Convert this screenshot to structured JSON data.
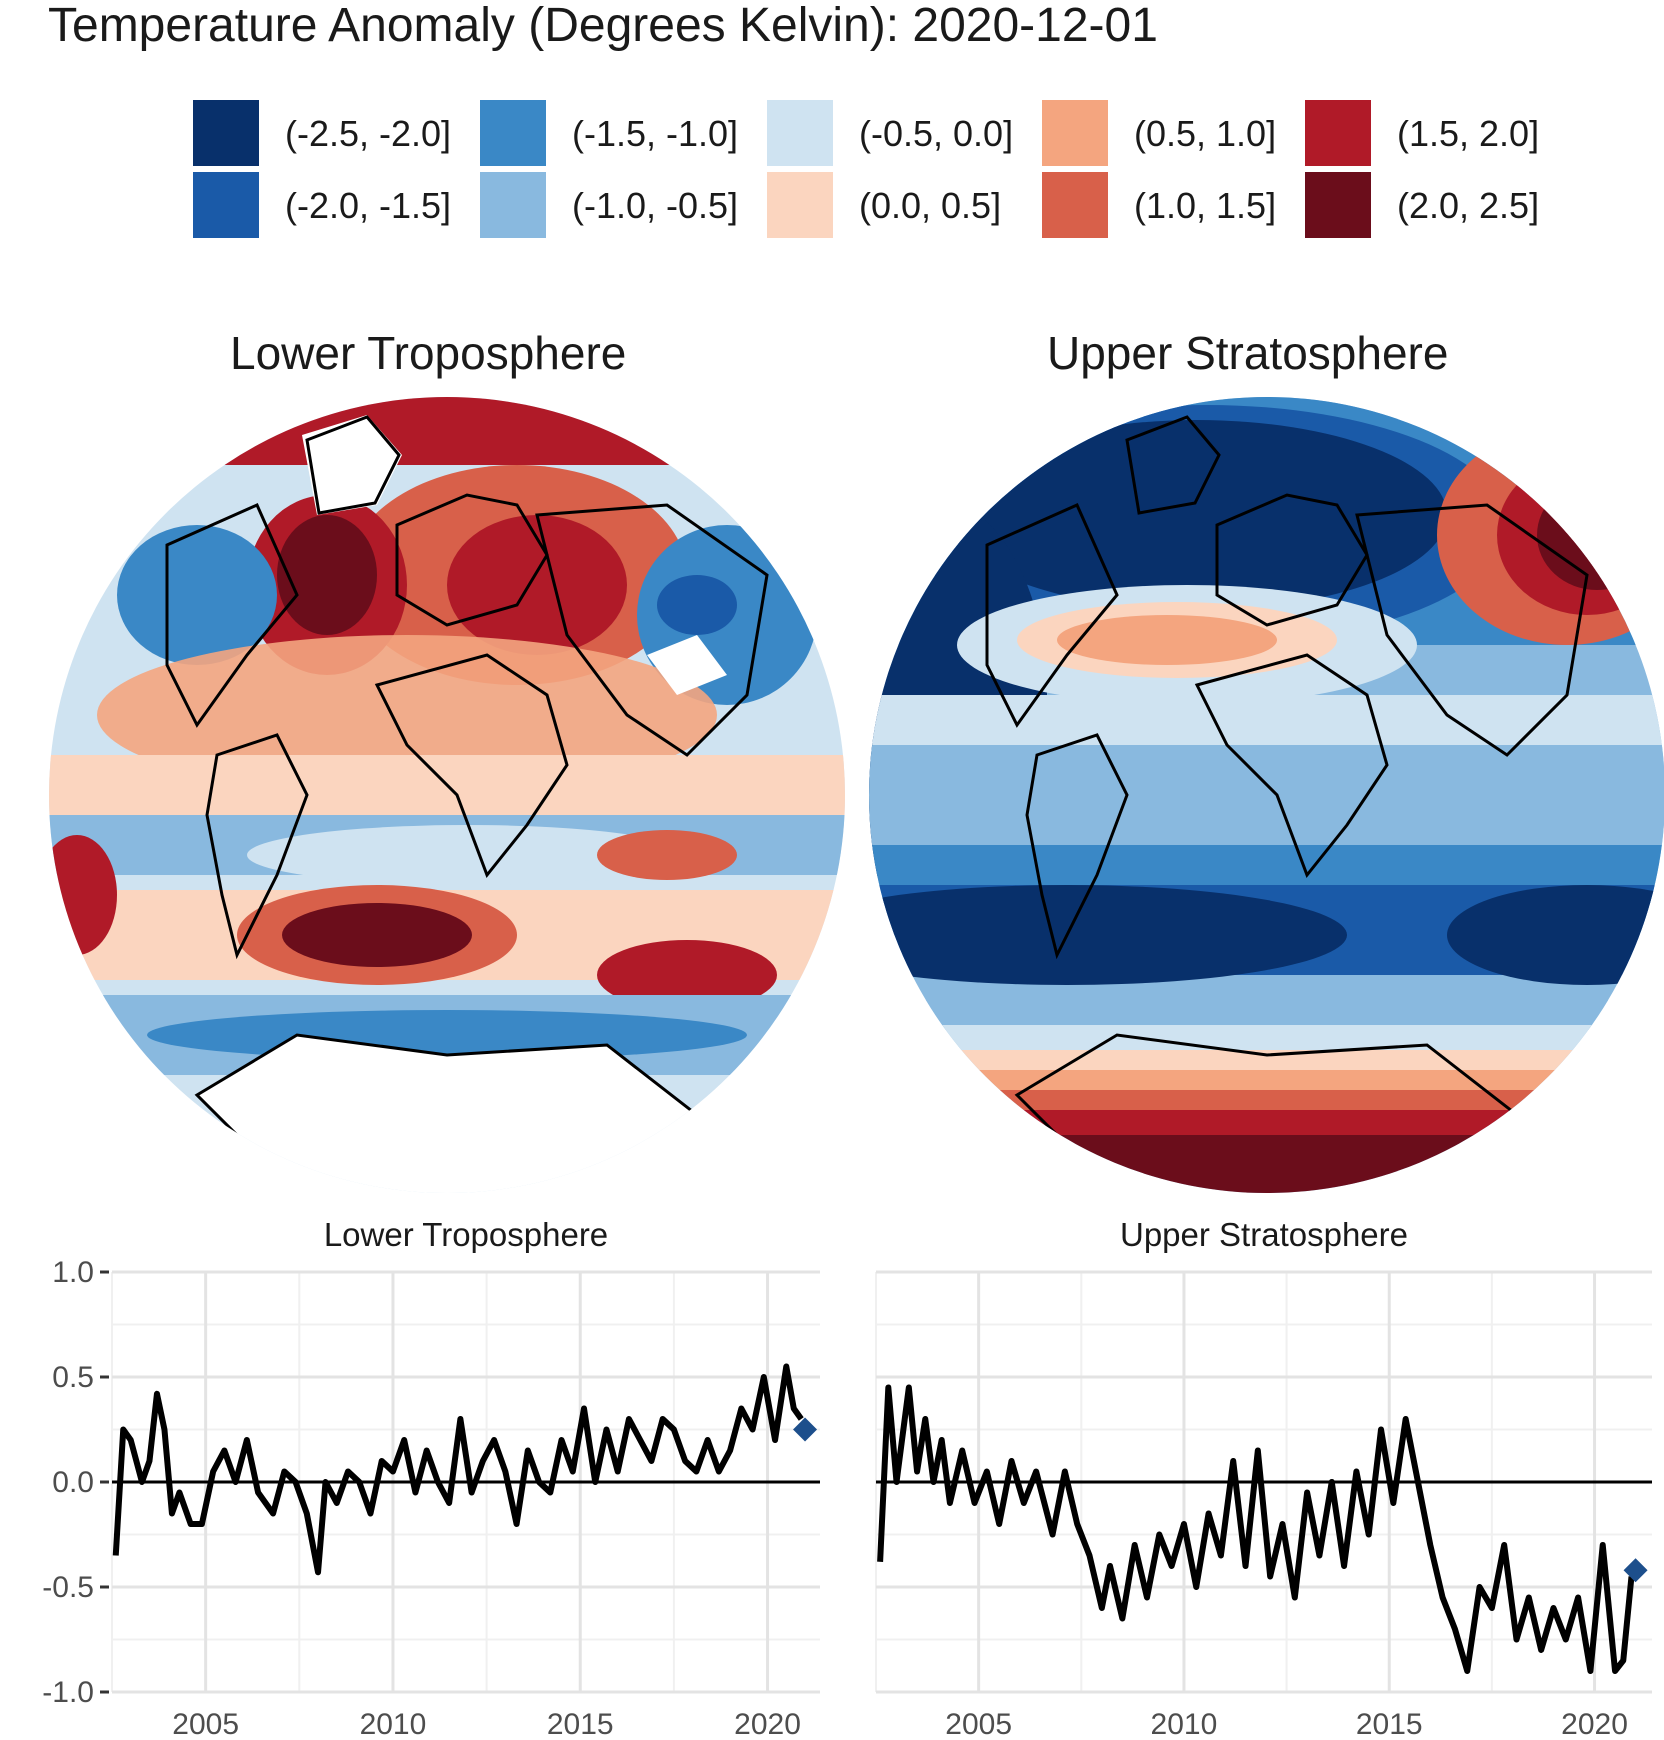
{
  "main_title": "Temperature Anomaly (Degrees Kelvin): 2020-12-01",
  "legend": {
    "items": [
      {
        "label": "(-2.5, -2.0]",
        "color": "#08306b"
      },
      {
        "label": "(-2.0, -1.5]",
        "color": "#1a5aa8"
      },
      {
        "label": "(-1.5, -1.0]",
        "color": "#3a88c6"
      },
      {
        "label": "(-1.0, -0.5]",
        "color": "#89b9df"
      },
      {
        "label": "(-0.5, 0.0]",
        "color": "#cfe3f1"
      },
      {
        "label": "(0.0, 0.5]",
        "color": "#fbd5bf"
      },
      {
        "label": "(0.5, 1.0]",
        "color": "#f4a57f"
      },
      {
        "label": "(1.0, 1.5]",
        "color": "#d8604a"
      },
      {
        "label": "(1.5, 2.0]",
        "color": "#b01a28"
      },
      {
        "label": "(2.0, 2.5]",
        "color": "#6b0d1b"
      }
    ]
  },
  "maps": {
    "left_title": "Lower Troposphere",
    "right_title": "Upper Stratosphere"
  },
  "chart_data": [
    {
      "type": "line",
      "title": "Lower Troposphere",
      "xlabel": "",
      "ylabel": "",
      "xlim": [
        2002.5,
        2021.4
      ],
      "ylim": [
        -1.0,
        1.0
      ],
      "x_ticks": [
        "2005",
        "2010",
        "2015",
        "2020"
      ],
      "y_ticks": [
        "1.0",
        "0.5",
        "0.0",
        "-0.5",
        "-1.0"
      ],
      "grid": true,
      "reference_line_y": 0.0,
      "series": [
        {
          "color": "#000000",
          "x": [
            2002.6,
            2002.8,
            2003.0,
            2003.3,
            2003.5,
            2003.7,
            2003.9,
            2004.1,
            2004.3,
            2004.6,
            2004.9,
            2005.2,
            2005.5,
            2005.8,
            2006.1,
            2006.4,
            2006.8,
            2007.1,
            2007.4,
            2007.7,
            2008.0,
            2008.2,
            2008.5,
            2008.8,
            2009.1,
            2009.4,
            2009.7,
            2010.0,
            2010.3,
            2010.6,
            2010.9,
            2011.2,
            2011.5,
            2011.8,
            2012.1,
            2012.4,
            2012.7,
            2013.0,
            2013.3,
            2013.6,
            2013.9,
            2014.2,
            2014.5,
            2014.8,
            2015.1,
            2015.4,
            2015.7,
            2016.0,
            2016.3,
            2016.6,
            2016.9,
            2017.2,
            2017.5,
            2017.8,
            2018.1,
            2018.4,
            2018.7,
            2019.0,
            2019.3,
            2019.6,
            2019.9,
            2020.2,
            2020.5,
            2020.7,
            2020.9
          ],
          "y": [
            -0.35,
            0.25,
            0.2,
            0.0,
            0.1,
            0.42,
            0.25,
            -0.15,
            -0.05,
            -0.2,
            -0.2,
            0.05,
            0.15,
            0.0,
            0.2,
            -0.05,
            -0.15,
            0.05,
            0.0,
            -0.15,
            -0.43,
            0.0,
            -0.1,
            0.05,
            0.0,
            -0.15,
            0.1,
            0.05,
            0.2,
            -0.05,
            0.15,
            0.0,
            -0.1,
            0.3,
            -0.05,
            0.1,
            0.2,
            0.05,
            -0.2,
            0.15,
            0.0,
            -0.05,
            0.2,
            0.05,
            0.35,
            0.0,
            0.25,
            0.05,
            0.3,
            0.2,
            0.1,
            0.3,
            0.25,
            0.1,
            0.05,
            0.2,
            0.05,
            0.15,
            0.35,
            0.25,
            0.5,
            0.2,
            0.55,
            0.35,
            0.3
          ]
        },
        {
          "name": "2020-12-01",
          "type": "point",
          "marker": "diamond",
          "color": "#1d4f8c",
          "x": [
            2021.0
          ],
          "y": [
            0.25
          ]
        }
      ]
    },
    {
      "type": "line",
      "title": "Upper Stratosphere",
      "xlabel": "",
      "ylabel": "",
      "xlim": [
        2002.5,
        2021.4
      ],
      "ylim": [
        -1.0,
        1.0
      ],
      "x_ticks": [
        "2005",
        "2010",
        "2015",
        "2020"
      ],
      "y_ticks": [
        "1.0",
        "0.5",
        "0.0",
        "-0.5",
        "-1.0"
      ],
      "grid": true,
      "reference_line_y": 0.0,
      "series": [
        {
          "color": "#000000",
          "x": [
            2002.6,
            2002.8,
            2003.0,
            2003.3,
            2003.5,
            2003.7,
            2003.9,
            2004.1,
            2004.3,
            2004.6,
            2004.9,
            2005.2,
            2005.5,
            2005.8,
            2006.1,
            2006.4,
            2006.8,
            2007.1,
            2007.4,
            2007.7,
            2008.0,
            2008.2,
            2008.5,
            2008.8,
            2009.1,
            2009.4,
            2009.7,
            2010.0,
            2010.3,
            2010.6,
            2010.9,
            2011.2,
            2011.5,
            2011.8,
            2012.1,
            2012.4,
            2012.7,
            2013.0,
            2013.3,
            2013.6,
            2013.9,
            2014.2,
            2014.5,
            2014.8,
            2015.1,
            2015.4,
            2015.7,
            2016.0,
            2016.3,
            2016.6,
            2016.9,
            2017.2,
            2017.5,
            2017.8,
            2018.1,
            2018.4,
            2018.7,
            2019.0,
            2019.3,
            2019.6,
            2019.9,
            2020.2,
            2020.5,
            2020.7,
            2020.9
          ],
          "y": [
            -0.38,
            0.45,
            0.0,
            0.45,
            0.05,
            0.3,
            0.0,
            0.2,
            -0.1,
            0.15,
            -0.1,
            0.05,
            -0.2,
            0.1,
            -0.1,
            0.05,
            -0.25,
            0.05,
            -0.2,
            -0.35,
            -0.6,
            -0.4,
            -0.65,
            -0.3,
            -0.55,
            -0.25,
            -0.4,
            -0.2,
            -0.5,
            -0.15,
            -0.35,
            0.1,
            -0.4,
            0.15,
            -0.45,
            -0.2,
            -0.55,
            -0.05,
            -0.35,
            0.0,
            -0.4,
            0.05,
            -0.25,
            0.25,
            -0.1,
            0.3,
            0.0,
            -0.3,
            -0.55,
            -0.7,
            -0.9,
            -0.5,
            -0.6,
            -0.3,
            -0.75,
            -0.55,
            -0.8,
            -0.6,
            -0.75,
            -0.55,
            -0.9,
            -0.3,
            -0.9,
            -0.85,
            -0.45
          ]
        },
        {
          "name": "2020-12-01",
          "type": "point",
          "marker": "diamond",
          "color": "#1d4f8c",
          "x": [
            2021.0
          ],
          "y": [
            -0.42
          ]
        }
      ]
    }
  ]
}
